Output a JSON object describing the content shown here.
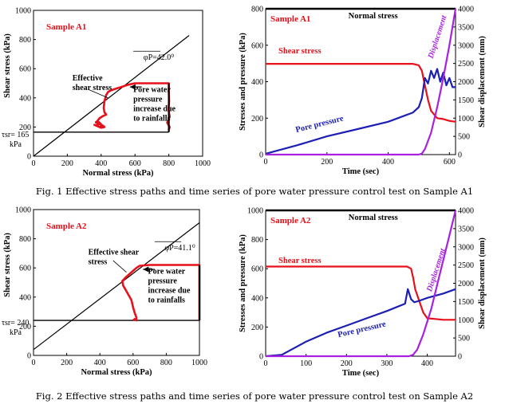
{
  "captions": {
    "fig1": "Fig. 1 Effective stress paths and time series of pore water pressure control test on Sample A1",
    "fig2": "Fig. 2 Effective stress paths and time series of pore water pressure control test on Sample A2"
  },
  "colors": {
    "shear": "#e8101a",
    "pore": "#1b1fb4",
    "displacement": "#a821e0",
    "normal": "#000000",
    "failure_line": "#000000"
  },
  "chart_data": [
    {
      "id": "fig1-stress-path",
      "type": "line",
      "title": "Sample A1",
      "xlabel": "Normal stress (kPa)",
      "ylabel": "Shear stress (kPa)",
      "xlim": [
        0,
        1000
      ],
      "ylim": [
        0,
        1000
      ],
      "xticks": [
        0,
        200,
        400,
        600,
        800,
        1000
      ],
      "yticks": [
        0,
        200,
        400,
        600,
        800,
        1000
      ],
      "annotations": {
        "phi": "φP=42.0⁰",
        "tau_value": "τsr= 165",
        "tau_unit": "kPa",
        "effective": [
          "Effective",
          "shear stress"
        ],
        "pore": [
          "Pore water",
          "pressure",
          "increase due",
          "to rainfalls"
        ]
      },
      "failure_line": {
        "x": [
          0,
          920
        ],
        "y": [
          0,
          828
        ]
      },
      "tau_sr": 165,
      "series": [
        {
          "role": "stress_path",
          "x": [
            800,
            805,
            790,
            805,
            798,
            802,
            800,
            800,
            800,
            700,
            600,
            560,
            520,
            480,
            455,
            440,
            430,
            425,
            420,
            418,
            415,
            420,
            430,
            410,
            390,
            380,
            370,
            385,
            375,
            360,
            380,
            400,
            420,
            410,
            390,
            370,
            380,
            395,
            405,
            390
          ],
          "y": [
            180,
            200,
            230,
            270,
            320,
            380,
            440,
            490,
            500,
            500,
            500,
            490,
            475,
            460,
            450,
            440,
            420,
            400,
            380,
            360,
            330,
            300,
            285,
            275,
            260,
            245,
            230,
            220,
            210,
            215,
            205,
            195,
            200,
            210,
            220,
            235,
            240,
            225,
            210,
            200
          ]
        }
      ]
    },
    {
      "id": "fig1-time-series",
      "type": "line",
      "title": "Sample A1",
      "xlabel": "Time (sec)",
      "ylabel": "Stresses and pressure (kPa)",
      "y2label": "Shear displacement (mm)",
      "xlim": [
        0,
        620
      ],
      "ylim": [
        0,
        800
      ],
      "y2lim": [
        0,
        4000
      ],
      "xticks": [
        0,
        200,
        400,
        600
      ],
      "yticks": [
        0,
        200,
        400,
        600,
        800
      ],
      "y2ticks": [
        0,
        500,
        1000,
        1500,
        2000,
        2500,
        3000,
        3500,
        4000
      ],
      "annotations": {
        "normal": "Normal stress",
        "shear": "Shear stress",
        "pore": "Pore pressure",
        "displacement": "Displacement"
      },
      "series": [
        {
          "role": "normal",
          "x": [
            0,
            620
          ],
          "y": [
            800,
            800
          ]
        },
        {
          "role": "shear",
          "x": [
            0,
            480,
            500,
            510,
            520,
            530,
            540,
            560,
            580,
            600,
            620
          ],
          "y": [
            498,
            498,
            490,
            460,
            380,
            300,
            240,
            200,
            195,
            185,
            180
          ]
        },
        {
          "role": "pore",
          "x": [
            0,
            100,
            200,
            300,
            400,
            480,
            500,
            510,
            520,
            530,
            540,
            550,
            560,
            570,
            580,
            590,
            600,
            610,
            620
          ],
          "y": [
            5,
            50,
            100,
            140,
            180,
            230,
            260,
            310,
            420,
            390,
            460,
            420,
            470,
            400,
            450,
            380,
            420,
            370,
            370
          ]
        },
        {
          "role": "displacement",
          "axis": "y2",
          "x": [
            0,
            500,
            510,
            520,
            540,
            560,
            580,
            600,
            620
          ],
          "y": [
            0,
            0,
            30,
            150,
            600,
            1300,
            2100,
            3000,
            4000
          ]
        }
      ]
    },
    {
      "id": "fig2-stress-path",
      "type": "line",
      "title": "Sample A2",
      "xlabel": "Normal stress (kPa)",
      "ylabel": "Shear stress (kPa)",
      "xlim": [
        0,
        1000
      ],
      "ylim": [
        0,
        1000
      ],
      "xticks": [
        0,
        200,
        400,
        600,
        800,
        1000
      ],
      "yticks": [
        0,
        200,
        400,
        600,
        800,
        1000
      ],
      "annotations": {
        "phi": "φP=41.1⁰",
        "tau_value": "τsr= 240",
        "tau_unit": "kPa",
        "effective": [
          "Effective shear",
          "stress"
        ],
        "pore": [
          "Pore water",
          "pressure",
          "increase due",
          "to rainfalls"
        ]
      },
      "failure_line": {
        "x": [
          0,
          1000
        ],
        "y": [
          40,
          910
        ]
      },
      "tau_sr": 240,
      "series": [
        {
          "role": "stress_path",
          "x": [
            1000,
            1000,
            1000,
            1000,
            900,
            800,
            700,
            640,
            620,
            600,
            560,
            535,
            540,
            560,
            590,
            600,
            610,
            620,
            620,
            610,
            600
          ],
          "y": [
            240,
            350,
            500,
            620,
            620,
            620,
            620,
            615,
            600,
            580,
            540,
            510,
            480,
            440,
            380,
            330,
            290,
            260,
            240,
            250,
            240
          ]
        }
      ]
    },
    {
      "id": "fig2-time-series",
      "type": "line",
      "title": "Sample A2",
      "xlabel": "Time (sec)",
      "ylabel": "Stresses and pressure (kPa)",
      "y2label": "Shear displacement (mm)",
      "xlim": [
        0,
        470
      ],
      "ylim": [
        0,
        1000
      ],
      "y2lim": [
        0,
        4000
      ],
      "xticks": [
        0,
        100,
        200,
        300,
        400
      ],
      "yticks": [
        0,
        200,
        400,
        600,
        800,
        1000
      ],
      "y2ticks": [
        0,
        500,
        1000,
        1500,
        2000,
        2500,
        3000,
        3500,
        4000
      ],
      "annotations": {
        "normal": "Normal stress",
        "shear": "Shear stress",
        "pore": "Pore pressure",
        "displacement": "Displacement"
      },
      "series": [
        {
          "role": "normal",
          "x": [
            0,
            470
          ],
          "y": [
            1000,
            1000
          ]
        },
        {
          "role": "shear",
          "x": [
            0,
            350,
            360,
            365,
            370,
            380,
            390,
            400,
            420,
            440,
            470
          ],
          "y": [
            615,
            615,
            600,
            540,
            460,
            380,
            300,
            260,
            255,
            250,
            250
          ]
        },
        {
          "role": "pore",
          "x": [
            0,
            40,
            100,
            150,
            200,
            250,
            300,
            345,
            352,
            360,
            368,
            380,
            400,
            440,
            470
          ],
          "y": [
            0,
            10,
            100,
            160,
            210,
            260,
            310,
            360,
            460,
            390,
            370,
            380,
            400,
            430,
            460
          ]
        },
        {
          "role": "displacement",
          "axis": "y2",
          "x": [
            0,
            355,
            365,
            375,
            390,
            410,
            430,
            450,
            470
          ],
          "y": [
            0,
            0,
            40,
            180,
            600,
            1300,
            2200,
            3100,
            4000
          ]
        }
      ]
    }
  ]
}
